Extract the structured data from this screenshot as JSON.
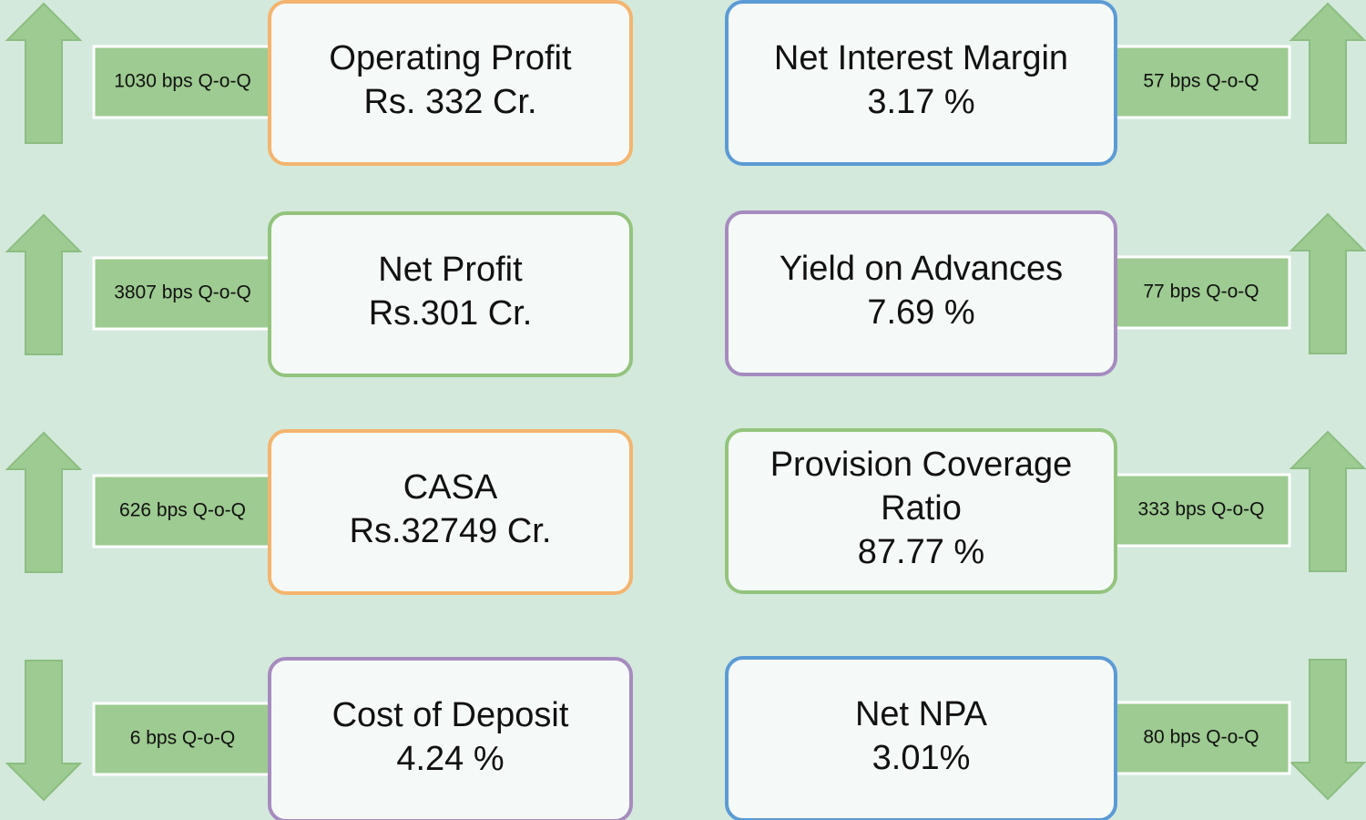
{
  "cards": [
    {
      "lines": [
        "Operating Profit",
        "Rs. 332 Cr."
      ],
      "change": "1030 bps Q-o-Q",
      "direction": "up",
      "border": "#f4b46e"
    },
    {
      "lines": [
        "Net Profit",
        " Rs.301 Cr."
      ],
      "change": "3807 bps Q-o-Q",
      "direction": "up",
      "border": "#93c47d"
    },
    {
      "lines": [
        "CASA",
        "Rs.32749 Cr."
      ],
      "change": "626 bps Q-o-Q",
      "direction": "up",
      "border": "#f4b46e"
    },
    {
      "lines": [
        "Cost of Deposit",
        "4.24 %"
      ],
      "change": "6 bps Q-o-Q",
      "direction": "down",
      "border": "#a68bbf"
    },
    {
      "lines": [
        "Net Interest Margin",
        "3.17 %"
      ],
      "change": "57 bps Q-o-Q",
      "direction": "up",
      "border": "#5b9bd5"
    },
    {
      "lines": [
        "Yield on Advances",
        "7.69 %"
      ],
      "change": "77 bps Q-o-Q",
      "direction": "up",
      "border": "#a68bbf"
    },
    {
      "lines": [
        "Provision Coverage",
        "Ratio",
        "87.77 %"
      ],
      "change": "333 bps Q-o-Q",
      "direction": "up",
      "border": "#93c47d"
    },
    {
      "lines": [
        "Net NPA",
        "3.01%"
      ],
      "change": "80 bps Q-o-Q",
      "direction": "down",
      "border": "#5b9bd5"
    }
  ]
}
